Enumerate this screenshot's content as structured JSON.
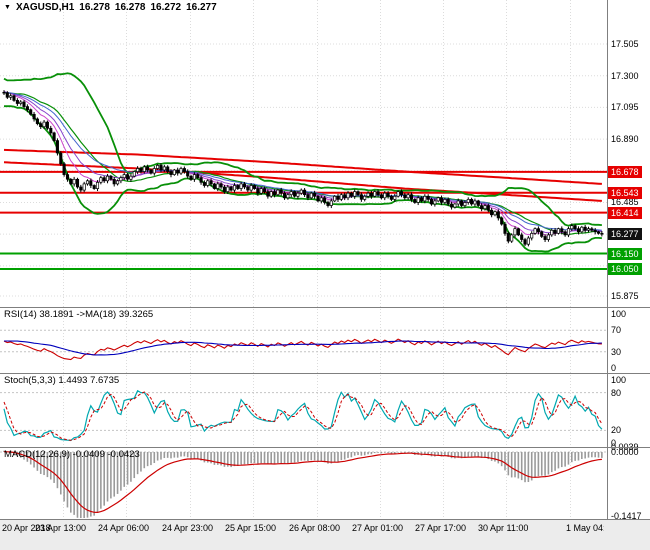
{
  "window": {
    "dropdown_icon": "▼",
    "symbol_period": "XAGUSD,H1",
    "open": "16.278",
    "high": "16.278",
    "low": "16.272",
    "close": "16.277"
  },
  "price_axis": {
    "labels": [
      "17.505",
      "17.300",
      "17.095",
      "16.890",
      "16.485",
      "15.875"
    ],
    "badges": [
      {
        "text": "16.678",
        "type": "resistance"
      },
      {
        "text": "16.543",
        "type": "resistance"
      },
      {
        "text": "16.414",
        "type": "resistance"
      },
      {
        "text": "16.277",
        "type": "current"
      },
      {
        "text": "16.150",
        "type": "support"
      },
      {
        "text": "16.050",
        "type": "support"
      }
    ]
  },
  "rsi_panel": {
    "name": "RSI(14)",
    "value": "38.1891",
    "ma_name": "->MA(18)",
    "ma_value": "39.3265",
    "axis_labels": [
      "100",
      "70",
      "30",
      "0"
    ]
  },
  "stoch_panel": {
    "name": "Stoch(5,3,3)",
    "value": "1.4493",
    "signal": "7.6735",
    "axis_labels": [
      "100",
      "80",
      "20",
      "0"
    ]
  },
  "macd_panel": {
    "name": "MACD(12,26,9)",
    "value": "-0.0409",
    "signal": "-0.0423",
    "axis_labels": [
      "0.0039",
      "0.0000",
      "-0.1417"
    ]
  },
  "time_axis": {
    "labels": [
      "20 Apr 2018",
      "23 Apr 13:00",
      "24 Apr 06:00",
      "24 Apr 23:00",
      "25 Apr 15:00",
      "26 Apr 08:00",
      "27 Apr 01:00",
      "27 Apr 17:00",
      "30 Apr 11:00",
      "1 May 04:00"
    ]
  },
  "colors": {
    "resistance_red": "#e60000",
    "support_green": "#00a000",
    "current_black": "#111111",
    "bollinger_green": "#089008",
    "ma_red": "#e60000",
    "ema_fast": "#cc44cc",
    "ema_mid": "#8844cc",
    "ema_slow": "#4466cc",
    "rsi_line": "#cc0000",
    "rsi_ma": "#0000bb",
    "stoch_k": "#00a8b0",
    "stoch_d": "#cc0000",
    "macd_hist": "#9a9a9a",
    "macd_signal": "#cc0000",
    "grid": "#dcdcdc",
    "bull_candle": "#ffffff",
    "bear_candle": "#000000",
    "candle_outline": "#000000"
  },
  "chart_data": {
    "type": "candlestick",
    "symbol": "XAGUSD",
    "timeframe": "H1",
    "last_ohlc": {
      "open": 16.278,
      "high": 16.278,
      "low": 16.272,
      "close": 16.277
    },
    "ylim": [
      15.82,
      17.79
    ],
    "price_gridlines": [
      17.505,
      17.3,
      17.095,
      16.89,
      16.685,
      16.48,
      16.275,
      16.07,
      15.875
    ],
    "levels": [
      {
        "price": 16.678,
        "color": "#e60000",
        "role": "resistance"
      },
      {
        "price": 16.543,
        "color": "#e60000",
        "role": "resistance"
      },
      {
        "price": 16.414,
        "color": "#e60000",
        "role": "resistance"
      },
      {
        "price": 16.15,
        "color": "#00a000",
        "role": "support"
      },
      {
        "price": 16.05,
        "color": "#00a000",
        "role": "support"
      }
    ],
    "time_labels": [
      "20 Apr 2018",
      "23 Apr 13:00",
      "24 Apr 06:00",
      "24 Apr 23:00",
      "25 Apr 15:00",
      "26 Apr 08:00",
      "27 Apr 01:00",
      "27 Apr 17:00",
      "30 Apr 11:00",
      "1 May 04:00"
    ],
    "closes": [
      17.19,
      17.16,
      17.17,
      17.14,
      17.12,
      17.13,
      17.1,
      17.08,
      17.05,
      17.02,
      16.99,
      16.97,
      17.0,
      16.96,
      16.93,
      16.88,
      16.8,
      16.73,
      16.66,
      16.63,
      16.6,
      16.63,
      16.58,
      16.56,
      16.6,
      16.62,
      16.59,
      16.57,
      16.61,
      16.64,
      16.62,
      16.65,
      16.63,
      16.6,
      16.62,
      16.64,
      16.66,
      16.63,
      16.65,
      16.68,
      16.7,
      16.68,
      16.71,
      16.69,
      16.67,
      16.7,
      16.72,
      16.69,
      16.71,
      16.68,
      16.66,
      16.69,
      16.67,
      16.7,
      16.68,
      16.65,
      16.63,
      16.66,
      16.64,
      16.61,
      16.59,
      16.62,
      16.6,
      16.57,
      16.6,
      16.58,
      16.55,
      16.58,
      16.56,
      16.59,
      16.57,
      16.6,
      16.58,
      16.56,
      16.59,
      16.57,
      16.54,
      16.57,
      16.55,
      16.52,
      16.55,
      16.53,
      16.56,
      16.54,
      16.51,
      16.53,
      16.55,
      16.52,
      16.54,
      16.56,
      16.53,
      16.51,
      16.54,
      16.52,
      16.49,
      16.51,
      16.48,
      16.46,
      16.49,
      16.52,
      16.5,
      16.53,
      16.51,
      16.54,
      16.52,
      16.55,
      16.53,
      16.5,
      16.52,
      16.54,
      16.52,
      16.55,
      16.53,
      16.51,
      16.54,
      16.52,
      16.5,
      16.52,
      16.55,
      16.53,
      16.51,
      16.53,
      16.5,
      16.48,
      16.51,
      16.49,
      16.52,
      16.5,
      16.47,
      16.49,
      16.51,
      16.48,
      16.5,
      16.47,
      16.45,
      16.47,
      16.49,
      16.46,
      16.48,
      16.5,
      16.47,
      16.49,
      16.46,
      16.44,
      16.46,
      16.43,
      16.4,
      16.42,
      16.38,
      16.34,
      16.28,
      16.23,
      16.27,
      16.31,
      16.27,
      16.24,
      16.21,
      16.25,
      16.28,
      16.31,
      16.29,
      16.26,
      16.24,
      16.27,
      16.3,
      16.28,
      16.31,
      16.29,
      16.27,
      16.31,
      16.33,
      16.31,
      16.29,
      16.32,
      16.3,
      16.31,
      16.3,
      16.29,
      16.28,
      16.277
    ],
    "ma_trend_upper": [
      [
        0,
        16.82
      ],
      [
        40,
        16.79
      ],
      [
        80,
        16.74
      ],
      [
        120,
        16.68
      ],
      [
        150,
        16.64
      ],
      [
        179,
        16.6
      ]
    ],
    "ma_trend_lower": [
      [
        0,
        16.74
      ],
      [
        40,
        16.7
      ],
      [
        80,
        16.64
      ],
      [
        120,
        16.57
      ],
      [
        150,
        16.53
      ],
      [
        179,
        16.49
      ]
    ],
    "indicators": {
      "bollinger": {
        "period": 20,
        "deviation": 2
      },
      "rsi": {
        "period": 14,
        "value": 38.1891,
        "ma_period": 18,
        "ma_value": 39.3265
      },
      "stochastic": {
        "k": 5,
        "d": 3,
        "slowing": 3,
        "value": 1.4493,
        "signal": 7.6735
      },
      "macd": {
        "fast": 12,
        "slow": 26,
        "signal": 9,
        "value": -0.0409,
        "signal_value": -0.0423
      }
    }
  }
}
